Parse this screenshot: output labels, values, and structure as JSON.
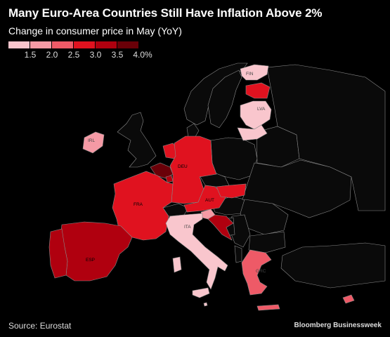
{
  "title": "Many Euro-Area Countries Still Have Inflation Above 2%",
  "subtitle": "Change in consumer price in May (YoY)",
  "legend": {
    "colors": [
      "#f9c6cd",
      "#f59aa5",
      "#ee5a67",
      "#e0121f",
      "#b0000f",
      "#6a0008"
    ],
    "ticks": [
      "1.5",
      "2.0",
      "2.5",
      "3.0",
      "3.5",
      "4.0%"
    ]
  },
  "colors": {
    "background": "#000000",
    "non_euro_fill": "#0a0a0a",
    "border": "#8a8a8a"
  },
  "countries": [
    {
      "code": "FIN",
      "label": "FIN",
      "color": "#f9c6cd"
    },
    {
      "code": "EST",
      "label": "",
      "color": "#e0121f"
    },
    {
      "code": "LVA",
      "label": "LVA",
      "color": "#f9c6cd"
    },
    {
      "code": "LTU",
      "label": "",
      "color": "#f9c6cd"
    },
    {
      "code": "IRL",
      "label": "IRL",
      "color": "#f59aa5"
    },
    {
      "code": "NLD",
      "label": "",
      "color": "#e0121f"
    },
    {
      "code": "BEL",
      "label": "",
      "color": "#6a0008"
    },
    {
      "code": "LUX",
      "label": "",
      "color": "#b0000f"
    },
    {
      "code": "DEU",
      "label": "DEU",
      "color": "#e0121f"
    },
    {
      "code": "FRA",
      "label": "FRA",
      "color": "#e0121f"
    },
    {
      "code": "AUT",
      "label": "AUT",
      "color": "#e0121f"
    },
    {
      "code": "SVK",
      "label": "",
      "color": "#e0121f"
    },
    {
      "code": "SVN",
      "label": "",
      "color": "#f59aa5"
    },
    {
      "code": "HRV",
      "label": "",
      "color": "#b0000f"
    },
    {
      "code": "ITA",
      "label": "ITA",
      "color": "#f9c6cd"
    },
    {
      "code": "ESP",
      "label": "ESP",
      "color": "#b0000f"
    },
    {
      "code": "PRT",
      "label": "",
      "color": "#b0000f"
    },
    {
      "code": "GRC",
      "label": "GRC",
      "color": "#ee5a67"
    },
    {
      "code": "CYP",
      "label": "",
      "color": "#ee5a67"
    },
    {
      "code": "MLT",
      "label": "",
      "color": "#f9c6cd"
    }
  ],
  "footer": {
    "source": "Source: Eurostat",
    "brand": "Bloomberg Businessweek"
  }
}
